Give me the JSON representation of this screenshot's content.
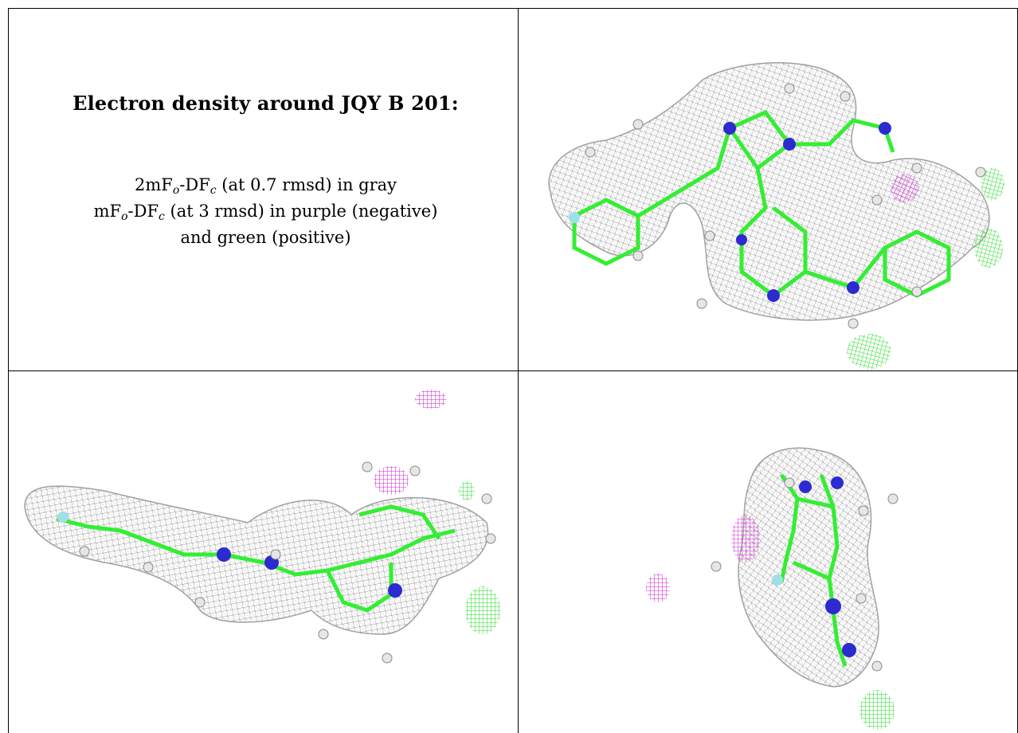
{
  "caption": {
    "title": "Electron density around JQY B 201:",
    "line1_a": "2mF",
    "line1_sub1": "o",
    "line1_b": "-DF",
    "line1_sub2": "c",
    "line1_c": " (at 0.7 rmsd) in gray",
    "line2_a": "mF",
    "line2_sub1": "o",
    "line2_b": "-DF",
    "line2_sub2": "c",
    "line2_c": " (at 3 rmsd) in purple (negative)",
    "line3": "and green (positive)"
  },
  "colors": {
    "density_mesh": "#9a9a9a",
    "carbon": "#33ee33",
    "nitrogen": "#2b2bd0",
    "hydrogen": "#e6e6e6",
    "chlorine": "#9fe0e8",
    "negative_density": "#cc22cc",
    "positive_density": "#22dd22"
  },
  "panels": [
    {
      "name": "view-top-right",
      "description": "top view"
    },
    {
      "name": "view-bottom-left",
      "description": "side view"
    },
    {
      "name": "view-bottom-right",
      "description": "end view"
    }
  ]
}
